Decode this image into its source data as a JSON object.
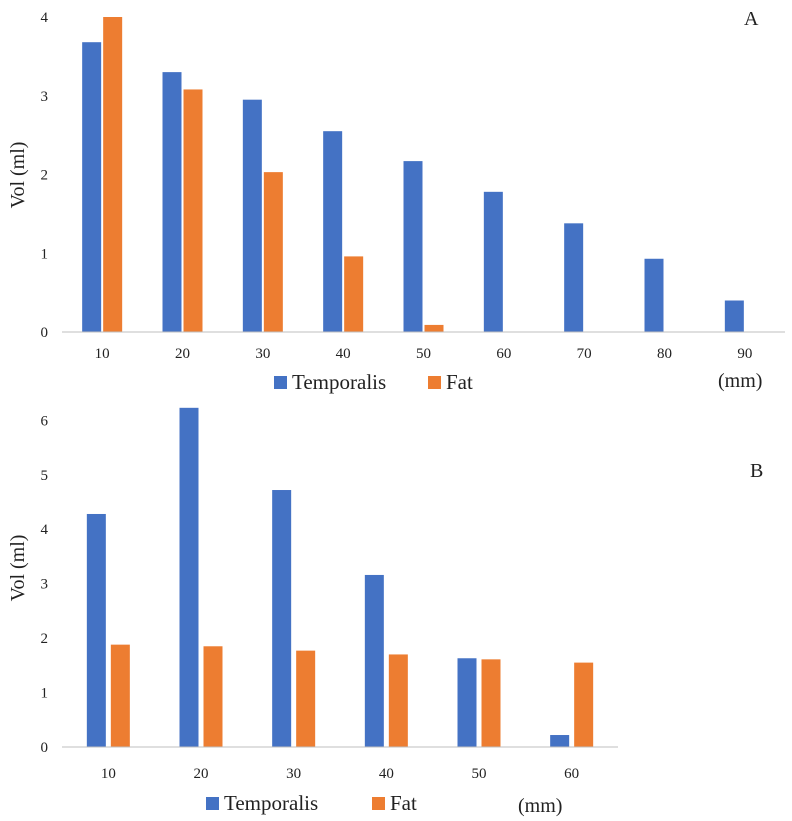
{
  "colors": {
    "temporalis": "#4472C4",
    "fat": "#ED7D31",
    "axis": "#BFBFBF"
  },
  "chart_data": [
    {
      "panel": "A",
      "type": "bar",
      "ylabel": "Vol (ml)",
      "xunit": "(mm)",
      "categories": [
        "10",
        "20",
        "30",
        "40",
        "50",
        "60",
        "70",
        "80",
        "90"
      ],
      "yticks": [
        "0",
        "1",
        "2",
        "3",
        "4"
      ],
      "ylim": [
        0,
        4
      ],
      "grid": false,
      "legend_position": "bottom",
      "series": [
        {
          "name": "Temporalis",
          "values": [
            3.68,
            3.3,
            2.95,
            2.55,
            2.17,
            1.78,
            1.38,
            0.93,
            0.4
          ]
        },
        {
          "name": "Fat",
          "values": [
            4.0,
            3.08,
            2.03,
            0.96,
            0.09,
            null,
            null,
            null,
            null
          ]
        }
      ]
    },
    {
      "panel": "B",
      "type": "bar",
      "ylabel": "Vol (ml)",
      "xunit": "(mm)",
      "categories": [
        "10",
        "20",
        "30",
        "40",
        "50",
        "60"
      ],
      "yticks": [
        "0",
        "1",
        "2",
        "3",
        "4",
        "5",
        "6"
      ],
      "ylim": [
        0,
        6.3
      ],
      "grid": false,
      "legend_position": "bottom",
      "series": [
        {
          "name": "Temporalis",
          "values": [
            4.28,
            6.23,
            4.72,
            3.16,
            1.63,
            0.22
          ]
        },
        {
          "name": "Fat",
          "values": [
            1.88,
            1.85,
            1.77,
            1.7,
            1.61,
            1.55
          ]
        }
      ]
    }
  ]
}
